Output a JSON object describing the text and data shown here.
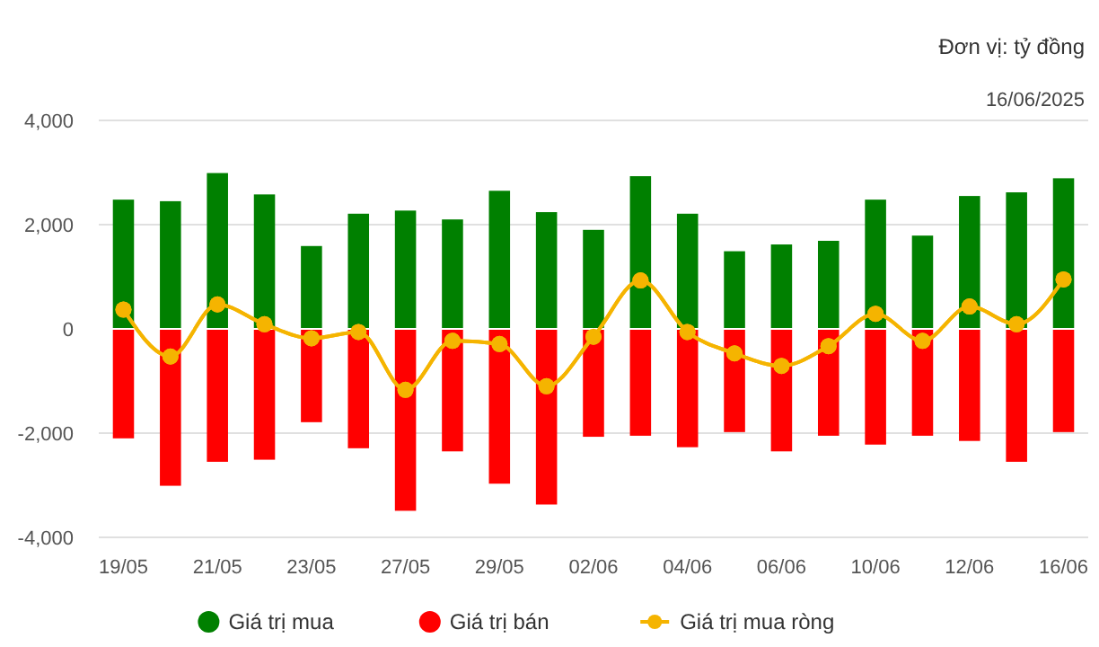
{
  "chart_data": {
    "type": "bar",
    "title": "Đơn vị: tỷ đồng",
    "subtitle": "16/06/2025",
    "categories": [
      "19/05",
      null,
      "21/05",
      null,
      "23/05",
      null,
      "27/05",
      null,
      "29/05",
      null,
      "02/06",
      null,
      "04/06",
      null,
      "06/06",
      null,
      "10/06",
      null,
      "12/06",
      null,
      "16/06"
    ],
    "stacked": true,
    "ylim": [
      -4000,
      4000
    ],
    "yticks": [
      {
        "value": -4000,
        "label": "-4,000"
      },
      {
        "value": -2000,
        "label": "-2,000"
      },
      0,
      {
        "value": 2000,
        "label": "2,000"
      },
      {
        "value": 4000,
        "label": "4,000"
      }
    ],
    "grid": "y",
    "legend": "bottom",
    "marker": "circle",
    "line_style": "solid",
    "series": [
      {
        "name": "Giá trị mua",
        "color": "#008000",
        "values": [
          2480,
          2450,
          2990,
          2580,
          1590,
          2210,
          2270,
          2100,
          2650,
          2240,
          1900,
          2930,
          2210,
          1490,
          1620,
          1690,
          2480,
          1790,
          2550,
          2620,
          2890
        ]
      },
      {
        "name": "Giá trị bán",
        "color": "#ff0000",
        "values": [
          -2100,
          -3010,
          -2550,
          -2510,
          -1790,
          -2290,
          -3490,
          -2350,
          -2970,
          -3370,
          -2070,
          -2050,
          -2270,
          -1980,
          -2350,
          -2050,
          -2220,
          -2050,
          -2150,
          -2550,
          -1980
        ]
      },
      {
        "name": "Giá trị mua ròng",
        "type": "line",
        "color": "#f5b400",
        "values": [
          370,
          -530,
          470,
          90,
          -180,
          -60,
          -1170,
          -230,
          -290,
          -1100,
          -150,
          930,
          -60,
          -470,
          -710,
          -330,
          290,
          -230,
          430,
          90,
          950
        ]
      }
    ]
  }
}
